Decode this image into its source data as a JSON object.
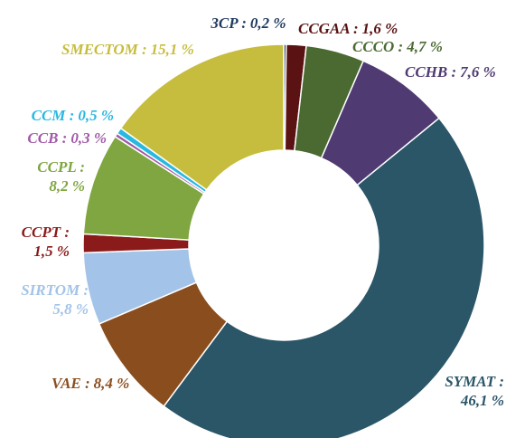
{
  "chart_data": {
    "type": "donut",
    "categories": [
      "3CP :",
      "CCGAA :",
      "CCCO :",
      "CCHB :",
      "SYMAT :",
      "VAE :",
      "SIRTOM :",
      "CCPT :",
      "CCPL :",
      "CCB :",
      "CCM :",
      "SMECTOM :"
    ],
    "values": [
      0.2,
      1.6,
      4.7,
      7.6,
      46.1,
      8.4,
      5.8,
      1.5,
      8.2,
      0.3,
      0.5,
      15.1
    ],
    "value_labels": [
      "0,2 %",
      "1,6 %",
      "4,7 %",
      "7,6 %",
      "46,1 %",
      "8,4 %",
      "5,8 %",
      "1,5 %",
      "8,2 %",
      "0,3 %",
      "0,5 %",
      "15,1 %"
    ],
    "colors": [
      "#1f3a5f",
      "#5a1212",
      "#4a6a32",
      "#4f3a72",
      "#2a5668",
      "#8a4e1e",
      "#a3c4e8",
      "#8b1a1a",
      "#7fa640",
      "#a05aa8",
      "#29b8e0",
      "#c6bd3e"
    ]
  }
}
